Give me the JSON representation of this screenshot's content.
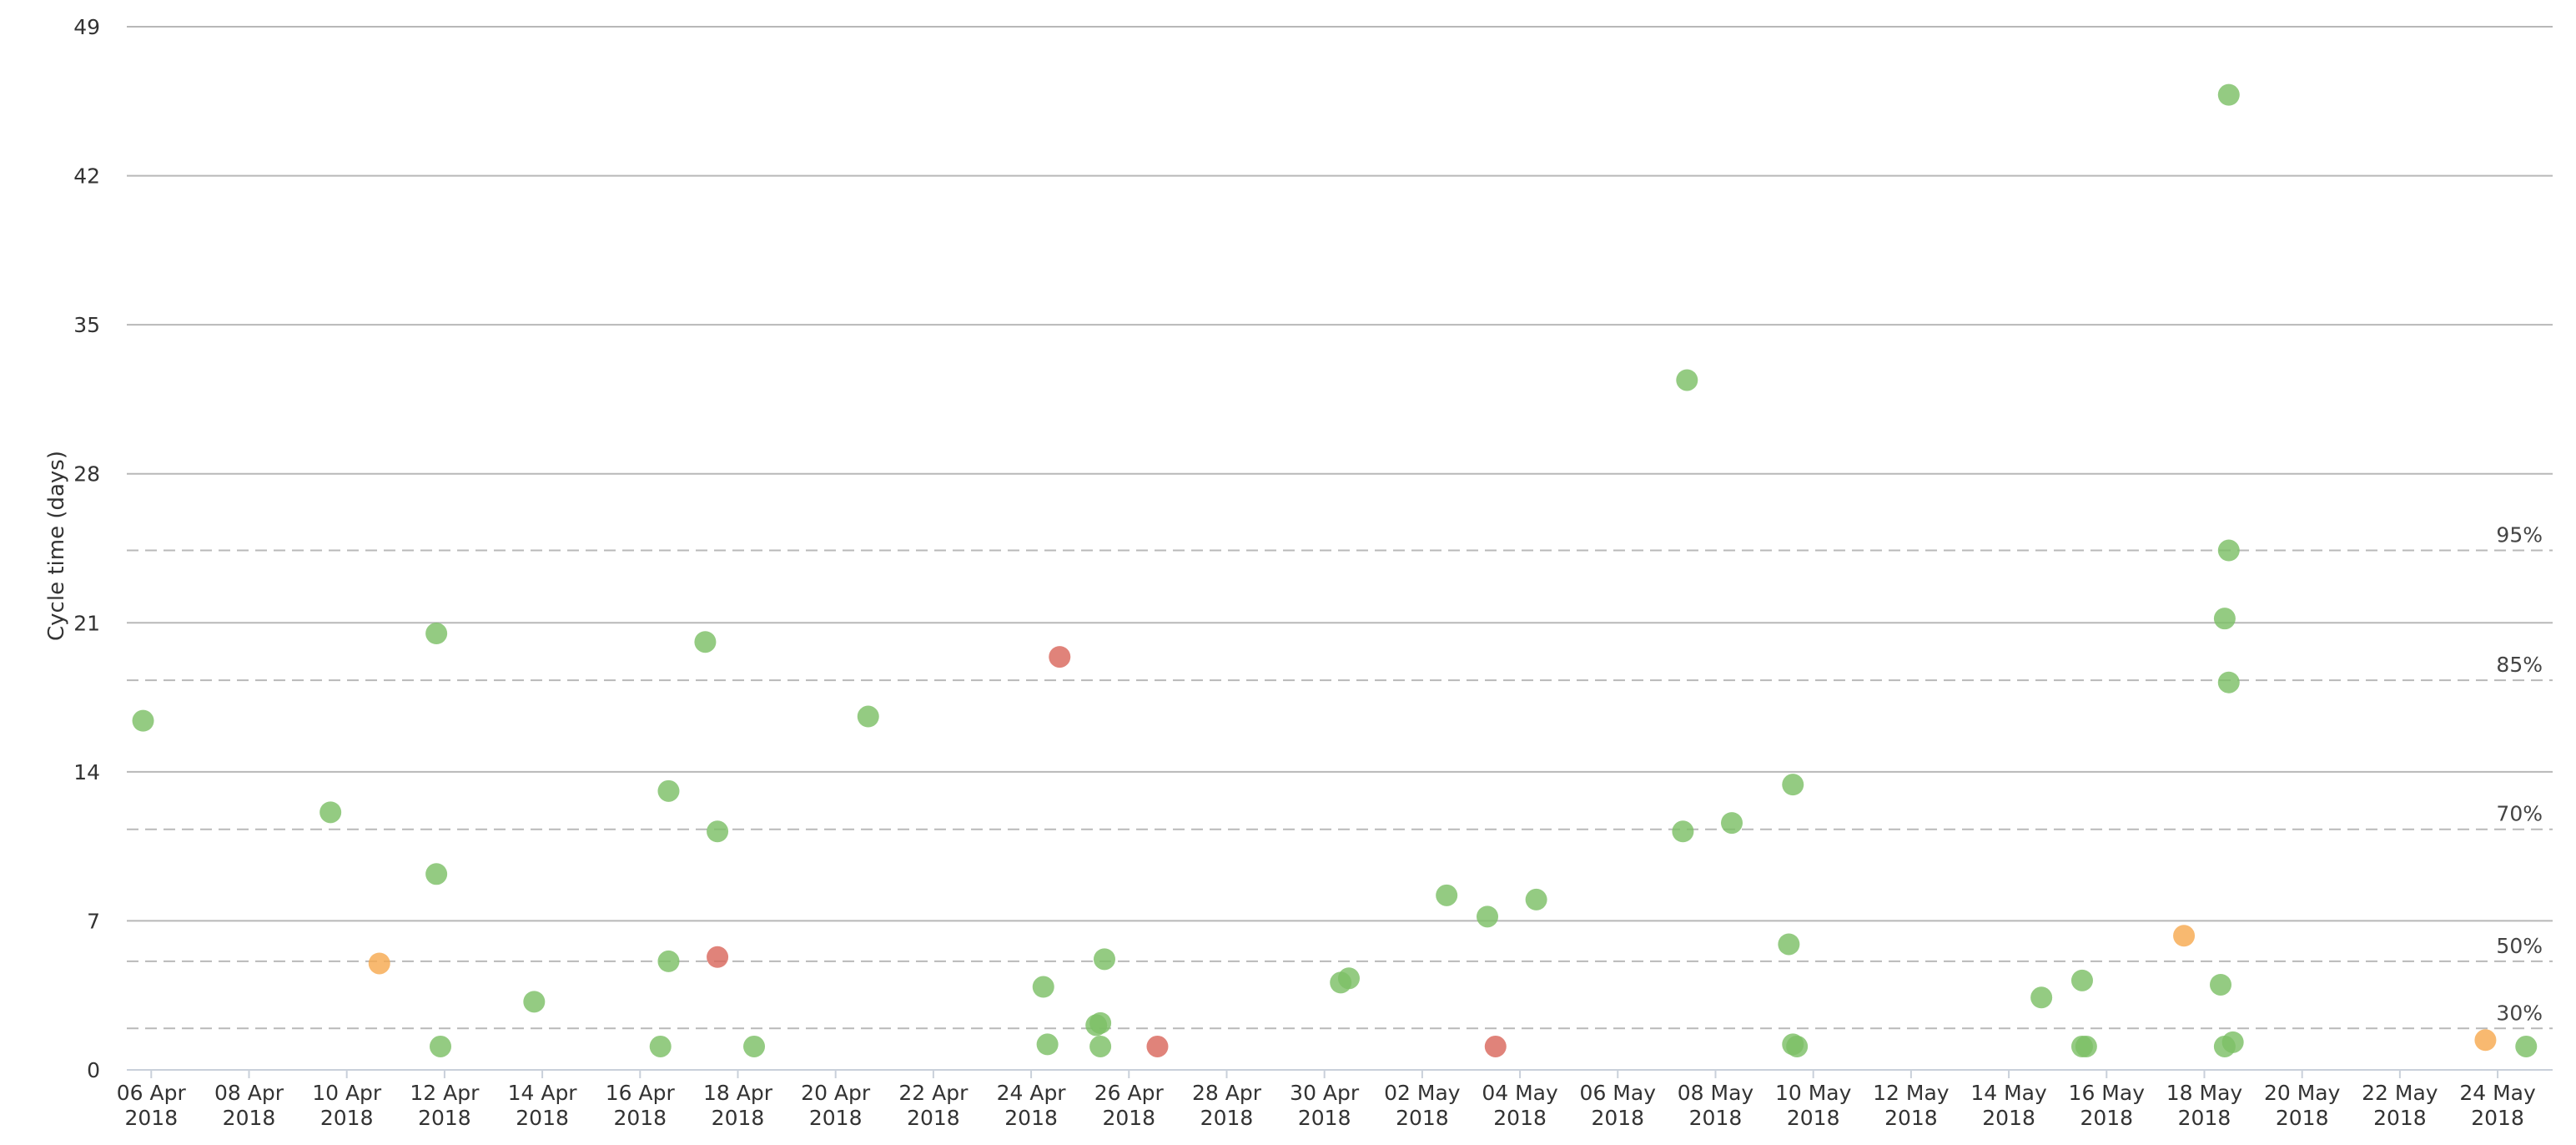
{
  "chart_data": {
    "type": "scatter",
    "ylabel": "Cycle time (days)",
    "xlabel": "",
    "title": "",
    "y_ticks": [
      0,
      7,
      14,
      21,
      28,
      35,
      42,
      49
    ],
    "ylim": [
      0,
      49
    ],
    "xlim": [
      "2018-04-05T12:00",
      "2018-05-25T03:00"
    ],
    "x_ticks": [
      {
        "date": "2018-04-06",
        "line1": "06 Apr",
        "line2": "2018"
      },
      {
        "date": "2018-04-08",
        "line1": "08 Apr",
        "line2": "2018"
      },
      {
        "date": "2018-04-10",
        "line1": "10 Apr",
        "line2": "2018"
      },
      {
        "date": "2018-04-12",
        "line1": "12 Apr",
        "line2": "2018"
      },
      {
        "date": "2018-04-14",
        "line1": "14 Apr",
        "line2": "2018"
      },
      {
        "date": "2018-04-16",
        "line1": "16 Apr",
        "line2": "2018"
      },
      {
        "date": "2018-04-18",
        "line1": "18 Apr",
        "line2": "2018"
      },
      {
        "date": "2018-04-20",
        "line1": "20 Apr",
        "line2": "2018"
      },
      {
        "date": "2018-04-22",
        "line1": "22 Apr",
        "line2": "2018"
      },
      {
        "date": "2018-04-24",
        "line1": "24 Apr",
        "line2": "2018"
      },
      {
        "date": "2018-04-26",
        "line1": "26 Apr",
        "line2": "2018"
      },
      {
        "date": "2018-04-28",
        "line1": "28 Apr",
        "line2": "2018"
      },
      {
        "date": "2018-04-30",
        "line1": "30 Apr",
        "line2": "2018"
      },
      {
        "date": "2018-05-02",
        "line1": "02 May",
        "line2": "2018"
      },
      {
        "date": "2018-05-04",
        "line1": "04 May",
        "line2": "2018"
      },
      {
        "date": "2018-05-06",
        "line1": "06 May",
        "line2": "2018"
      },
      {
        "date": "2018-05-08",
        "line1": "08 May",
        "line2": "2018"
      },
      {
        "date": "2018-05-10",
        "line1": "10 May",
        "line2": "2018"
      },
      {
        "date": "2018-05-12",
        "line1": "12 May",
        "line2": "2018"
      },
      {
        "date": "2018-05-14",
        "line1": "14 May",
        "line2": "2018"
      },
      {
        "date": "2018-05-16",
        "line1": "16 May",
        "line2": "2018"
      },
      {
        "date": "2018-05-18",
        "line1": "18 May",
        "line2": "2018"
      },
      {
        "date": "2018-05-20",
        "line1": "20 May",
        "line2": "2018"
      },
      {
        "date": "2018-05-22",
        "line1": "22 May",
        "line2": "2018"
      },
      {
        "date": "2018-05-24",
        "line1": "24 May",
        "line2": "2018"
      }
    ],
    "percentiles": [
      {
        "label": "95%",
        "value": 24.4
      },
      {
        "label": "85%",
        "value": 18.3
      },
      {
        "label": "70%",
        "value": 11.3
      },
      {
        "label": "50%",
        "value": 5.1
      },
      {
        "label": "30%",
        "value": 1.95
      }
    ],
    "colors": {
      "green": "#7dbf66",
      "orange": "#f7a951",
      "red": "#d9685d"
    },
    "points": [
      {
        "x": "2018-04-05T20:00",
        "y": 16.4,
        "color": "green"
      },
      {
        "x": "2018-04-09T16:00",
        "y": 12.1,
        "color": "green"
      },
      {
        "x": "2018-04-10T16:00",
        "y": 5.0,
        "color": "orange"
      },
      {
        "x": "2018-04-11T20:00",
        "y": 20.5,
        "color": "green"
      },
      {
        "x": "2018-04-11T20:00",
        "y": 9.2,
        "color": "green"
      },
      {
        "x": "2018-04-11T22:00",
        "y": 1.1,
        "color": "green"
      },
      {
        "x": "2018-04-13T20:00",
        "y": 3.2,
        "color": "green"
      },
      {
        "x": "2018-04-16T14:00",
        "y": 13.1,
        "color": "green"
      },
      {
        "x": "2018-04-16T14:00",
        "y": 5.1,
        "color": "green"
      },
      {
        "x": "2018-04-16T10:00",
        "y": 1.1,
        "color": "green"
      },
      {
        "x": "2018-04-17T08:00",
        "y": 20.1,
        "color": "green"
      },
      {
        "x": "2018-04-17T14:00",
        "y": 11.2,
        "color": "green"
      },
      {
        "x": "2018-04-17T14:00",
        "y": 5.3,
        "color": "red"
      },
      {
        "x": "2018-04-18T08:00",
        "y": 1.1,
        "color": "green"
      },
      {
        "x": "2018-04-20T16:00",
        "y": 16.6,
        "color": "green"
      },
      {
        "x": "2018-04-24T06:00",
        "y": 3.9,
        "color": "green"
      },
      {
        "x": "2018-04-24T08:00",
        "y": 1.2,
        "color": "green"
      },
      {
        "x": "2018-04-24T14:00",
        "y": 19.4,
        "color": "red"
      },
      {
        "x": "2018-04-25T08:00",
        "y": 2.1,
        "color": "green"
      },
      {
        "x": "2018-04-25T10:00",
        "y": 2.2,
        "color": "green"
      },
      {
        "x": "2018-04-25T12:00",
        "y": 5.2,
        "color": "green"
      },
      {
        "x": "2018-04-25T10:00",
        "y": 1.1,
        "color": "green"
      },
      {
        "x": "2018-04-26T14:00",
        "y": 1.1,
        "color": "red"
      },
      {
        "x": "2018-04-30T08:00",
        "y": 4.1,
        "color": "green"
      },
      {
        "x": "2018-04-30T12:00",
        "y": 4.3,
        "color": "green"
      },
      {
        "x": "2018-05-02T12:00",
        "y": 8.2,
        "color": "green"
      },
      {
        "x": "2018-05-03T08:00",
        "y": 7.2,
        "color": "green"
      },
      {
        "x": "2018-05-03T12:00",
        "y": 1.1,
        "color": "red"
      },
      {
        "x": "2018-05-04T08:00",
        "y": 8.0,
        "color": "green"
      },
      {
        "x": "2018-05-07T08:00",
        "y": 11.2,
        "color": "green"
      },
      {
        "x": "2018-05-07T10:00",
        "y": 32.4,
        "color": "green"
      },
      {
        "x": "2018-05-08T08:00",
        "y": 11.6,
        "color": "green"
      },
      {
        "x": "2018-05-09T12:00",
        "y": 5.9,
        "color": "green"
      },
      {
        "x": "2018-05-09T14:00",
        "y": 13.4,
        "color": "green"
      },
      {
        "x": "2018-05-09T14:00",
        "y": 1.2,
        "color": "green"
      },
      {
        "x": "2018-05-09T16:00",
        "y": 1.1,
        "color": "green"
      },
      {
        "x": "2018-05-14T16:00",
        "y": 3.4,
        "color": "green"
      },
      {
        "x": "2018-05-15T12:00",
        "y": 4.2,
        "color": "green"
      },
      {
        "x": "2018-05-15T12:00",
        "y": 1.1,
        "color": "green"
      },
      {
        "x": "2018-05-15T14:00",
        "y": 1.1,
        "color": "green"
      },
      {
        "x": "2018-05-17T14:00",
        "y": 6.3,
        "color": "orange"
      },
      {
        "x": "2018-05-18T08:00",
        "y": 4.0,
        "color": "green"
      },
      {
        "x": "2018-05-18T10:00",
        "y": 21.2,
        "color": "green"
      },
      {
        "x": "2018-05-18T12:00",
        "y": 45.8,
        "color": "green"
      },
      {
        "x": "2018-05-18T12:00",
        "y": 24.4,
        "color": "green"
      },
      {
        "x": "2018-05-18T12:00",
        "y": 18.2,
        "color": "green"
      },
      {
        "x": "2018-05-18T10:00",
        "y": 1.1,
        "color": "green"
      },
      {
        "x": "2018-05-18T14:00",
        "y": 1.3,
        "color": "green"
      },
      {
        "x": "2018-05-23T18:00",
        "y": 1.4,
        "color": "orange"
      },
      {
        "x": "2018-05-24T14:00",
        "y": 1.1,
        "color": "green"
      }
    ]
  }
}
